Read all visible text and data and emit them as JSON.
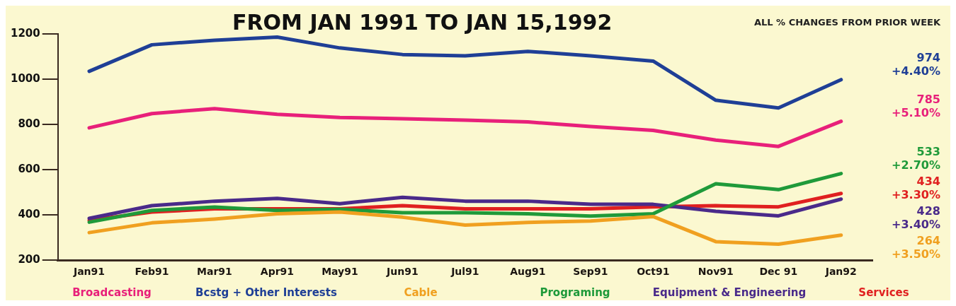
{
  "chart_data": {
    "type": "line",
    "title": "FROM JAN 1991 TO JAN 15,1992",
    "subtitle": "ALL % CHANGES FROM PRIOR WEEK",
    "categories": [
      "Jan91",
      "Feb91",
      "Mar91",
      "Apr91",
      "May91",
      "Jun91",
      "Jul91",
      "Aug91",
      "Sep91",
      "Oct91",
      "Nov91",
      "Dec 91",
      "Jan92"
    ],
    "series": [
      {
        "name": "Broadcasting",
        "color": "#e8207a",
        "values": [
          785,
          848,
          870,
          845,
          831,
          825,
          819,
          811,
          791,
          774,
          731,
          703,
          814
        ]
      },
      {
        "name": "Bcstg + Other Interests",
        "color": "#1f3f96",
        "values": [
          1035,
          1152,
          1172,
          1186,
          1138,
          1109,
          1103,
          1123,
          1103,
          1080,
          907,
          873,
          998
        ]
      },
      {
        "name": "Cable",
        "color": "#f0a020",
        "values": [
          322,
          365,
          382,
          405,
          413,
          390,
          355,
          367,
          373,
          393,
          282,
          271,
          311
        ]
      },
      {
        "name": "Programing",
        "color": "#1f9a3a",
        "values": [
          368,
          420,
          435,
          420,
          425,
          410,
          410,
          405,
          395,
          405,
          538,
          512,
          583
        ]
      },
      {
        "name": "Equipment & Engineering",
        "color": "#4a2a8a",
        "values": [
          385,
          441,
          461,
          473,
          450,
          478,
          461,
          461,
          447,
          447,
          416,
          396,
          470
        ]
      },
      {
        "name": "Services",
        "color": "#e02020",
        "values": [
          376,
          413,
          427,
          427,
          427,
          441,
          427,
          427,
          427,
          436,
          441,
          436,
          495
        ]
      }
    ],
    "annotations": [
      "785 +5.10%",
      "974 +4.40%",
      "264 +3.50%",
      "533 +2.70%",
      "428 +3.40%",
      "434 +3.30%"
    ],
    "ylim": [
      200,
      1200
    ],
    "yticks": [
      200,
      400,
      600,
      800,
      1000,
      1200
    ],
    "grid": false,
    "legend": "bottom",
    "marker": "none",
    "line_style": "solid"
  }
}
